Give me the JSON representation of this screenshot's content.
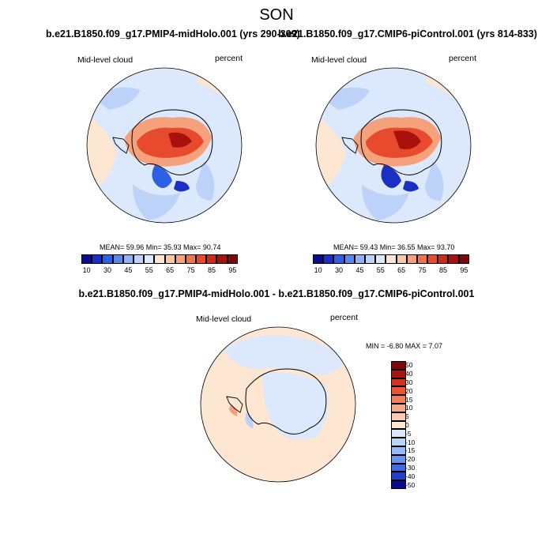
{
  "page": {
    "title": "SON",
    "diff_title": "b.e21.B1850.f09_g17.PMIP4-midHolo.001 - b.e21.B1850.f09_g17.CMIP6-piControl.001"
  },
  "panels": {
    "left": {
      "case_title": "b.e21.B1850.f09_g17.PMIP4-midHolo.001 (yrs 290-309)",
      "variable": "Mid-level cloud",
      "units": "percent",
      "stats": "MEAN=  59.96   Min=  35.93   Max=  90.74"
    },
    "right": {
      "case_title": "b.e21.B1850.f09_g17.CMIP6-piControl.001 (yrs 814-833)",
      "variable": "Mid-level cloud",
      "units": "percent",
      "stats": "MEAN=  59.43   Min=  36.55   Max=  93.70"
    },
    "diff": {
      "variable": "Mid-level cloud",
      "units": "percent",
      "stats": "MIN =  -6.80 MAX =   7.07"
    }
  },
  "chart_data": [
    {
      "type": "heatmap",
      "projection": "polar-stereographic (south pole)",
      "title": "b.e21.B1850.f09_g17.PMIP4-midHolo.001 (yrs 290-309)",
      "variable": "Mid-level cloud",
      "units": "percent",
      "mean": 59.96,
      "min": 35.93,
      "max": 90.74,
      "colorbar_levels": [
        10,
        20,
        30,
        40,
        45,
        50,
        55,
        60,
        65,
        70,
        75,
        80,
        85,
        90,
        95
      ],
      "colorbar_tick_labels": [
        "10",
        "30",
        "45",
        "55",
        "65",
        "75",
        "85",
        "95"
      ]
    },
    {
      "type": "heatmap",
      "projection": "polar-stereographic (south pole)",
      "title": "b.e21.B1850.f09_g17.CMIP6-piControl.001 (yrs 814-833)",
      "variable": "Mid-level cloud",
      "units": "percent",
      "mean": 59.43,
      "min": 36.55,
      "max": 93.7,
      "colorbar_levels": [
        10,
        20,
        30,
        40,
        45,
        50,
        55,
        60,
        65,
        70,
        75,
        80,
        85,
        90,
        95
      ],
      "colorbar_tick_labels": [
        "10",
        "30",
        "45",
        "55",
        "65",
        "75",
        "85",
        "95"
      ]
    },
    {
      "type": "heatmap",
      "projection": "polar-stereographic (south pole)",
      "title": "b.e21.B1850.f09_g17.PMIP4-midHolo.001 - b.e21.B1850.f09_g17.CMIP6-piControl.001",
      "variable": "Mid-level cloud",
      "units": "percent",
      "min": -6.8,
      "max": 7.07,
      "colorbar_levels": [
        50,
        40,
        30,
        20,
        15,
        10,
        5,
        0,
        -5,
        -10,
        -15,
        -20,
        -30,
        -40,
        -50
      ],
      "colorbar_tick_labels": [
        "50",
        "40",
        "30",
        "20",
        "15",
        "10",
        "5",
        "0",
        "-5",
        "-10",
        "-15",
        "-20",
        "-30",
        "-40",
        "-50"
      ]
    }
  ],
  "colors": {
    "abs_scale": [
      "#0a0b8e",
      "#1a2fc4",
      "#2f5fe3",
      "#5a86ee",
      "#8fb0f4",
      "#bcd2f8",
      "#dce8fb",
      "#fde6d2",
      "#f9c7a6",
      "#f4a17c",
      "#ee7350",
      "#e74a2d",
      "#cf2a17",
      "#a8120c",
      "#7c0808"
    ],
    "diff_scale": [
      "#7c0808",
      "#a8120c",
      "#d6311b",
      "#ee5430",
      "#f38058",
      "#f7a886",
      "#fbcbb1",
      "#fde6d2",
      "#dce8fb",
      "#bcd2f8",
      "#98b8f5",
      "#6a93ef",
      "#3f6be6",
      "#2140c9",
      "#0a0b8e"
    ]
  }
}
